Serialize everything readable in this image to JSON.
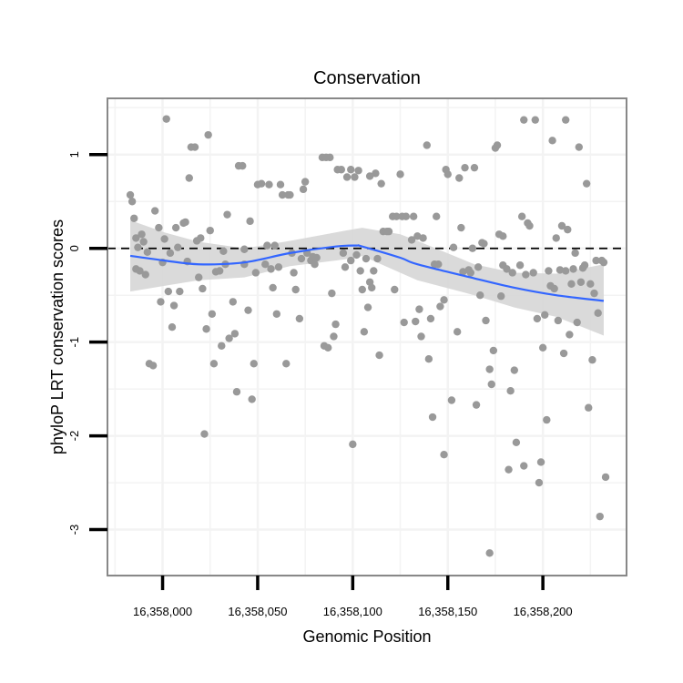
{
  "chart_data": {
    "type": "scatter",
    "title": "Conservation",
    "xlabel": "Genomic Position",
    "ylabel": "phyloP LRT conservation scores",
    "xlim": [
      16357971,
      16358244
    ],
    "ylim": [
      -3.49,
      1.6
    ],
    "grid": true,
    "x_ticks": [
      16358000,
      16358050,
      16358100,
      16358150,
      16358200
    ],
    "x_tick_labels": [
      "16,358,000",
      "16,358,050",
      "16,358,100",
      "16,358,150",
      "16,358,200"
    ],
    "y_ticks": [
      1,
      0,
      -1,
      -2,
      -3
    ],
    "y_tick_labels": [
      "1",
      "0",
      "-1",
      "-2",
      "-3"
    ],
    "reference_line": {
      "y": 0,
      "style": "dashed"
    },
    "colors": {
      "points": "#999999",
      "smooth": "#3366ff",
      "ribbon": "#d6d6d6",
      "border": "#888888"
    },
    "points": [
      [
        16357983,
        0.57
      ],
      [
        16357984,
        0.5
      ],
      [
        16357985,
        0.32
      ],
      [
        16357986,
        0.11
      ],
      [
        16357986,
        -0.22
      ],
      [
        16357987,
        0.01
      ],
      [
        16357988,
        -0.24
      ],
      [
        16357989,
        0.15
      ],
      [
        16357990,
        0.07
      ],
      [
        16357991,
        -0.28
      ],
      [
        16357992,
        -0.04
      ],
      [
        16357993,
        -1.23
      ],
      [
        16357995,
        -1.25
      ],
      [
        16357996,
        0.4
      ],
      [
        16357998,
        0.22
      ],
      [
        16357999,
        -0.57
      ],
      [
        16358000,
        -0.15
      ],
      [
        16358001,
        0.1
      ],
      [
        16358002,
        1.38
      ],
      [
        16358003,
        -0.46
      ],
      [
        16358004,
        -0.05
      ],
      [
        16358005,
        -0.84
      ],
      [
        16358006,
        -0.61
      ],
      [
        16358007,
        0.22
      ],
      [
        16358008,
        0.01
      ],
      [
        16358009,
        -0.46
      ],
      [
        16358011,
        0.27
      ],
      [
        16358012,
        0.28
      ],
      [
        16358013,
        -0.14
      ],
      [
        16358014,
        0.75
      ],
      [
        16358015,
        1.08
      ],
      [
        16358017,
        1.08
      ],
      [
        16358018,
        0.08
      ],
      [
        16358019,
        -0.31
      ],
      [
        16358020,
        0.11
      ],
      [
        16358021,
        -0.43
      ],
      [
        16358022,
        -1.98
      ],
      [
        16358023,
        -0.86
      ],
      [
        16358024,
        1.21
      ],
      [
        16358025,
        0.19
      ],
      [
        16358026,
        -0.7
      ],
      [
        16358027,
        -1.23
      ],
      [
        16358028,
        -0.25
      ],
      [
        16358030,
        -0.24
      ],
      [
        16358031,
        -1.04
      ],
      [
        16358032,
        -0.03
      ],
      [
        16358033,
        -0.17
      ],
      [
        16358034,
        0.36
      ],
      [
        16358035,
        -0.96
      ],
      [
        16358037,
        -0.57
      ],
      [
        16358038,
        -0.91
      ],
      [
        16358039,
        -1.53
      ],
      [
        16358040,
        0.88
      ],
      [
        16358042,
        0.88
      ],
      [
        16358043,
        -0.01
      ],
      [
        16358043,
        -0.17
      ],
      [
        16358045,
        -0.66
      ],
      [
        16358046,
        0.29
      ],
      [
        16358047,
        -1.61
      ],
      [
        16358048,
        -1.23
      ],
      [
        16358049,
        -0.26
      ],
      [
        16358050,
        0.68
      ],
      [
        16358052,
        0.69
      ],
      [
        16358054,
        -0.17
      ],
      [
        16358055,
        0.03
      ],
      [
        16358056,
        0.68
      ],
      [
        16358057,
        -0.22
      ],
      [
        16358058,
        -0.42
      ],
      [
        16358059,
        0.03
      ],
      [
        16358060,
        -0.7
      ],
      [
        16358061,
        -0.2
      ],
      [
        16358062,
        0.68
      ],
      [
        16358063,
        0.57
      ],
      [
        16358065,
        -1.23
      ],
      [
        16358066,
        0.57
      ],
      [
        16358067,
        0.57
      ],
      [
        16358068,
        -0.05
      ],
      [
        16358069,
        -0.26
      ],
      [
        16358070,
        -0.44
      ],
      [
        16358072,
        -0.75
      ],
      [
        16358073,
        -0.11
      ],
      [
        16358074,
        0.63
      ],
      [
        16358075,
        0.71
      ],
      [
        16358076,
        -0.05
      ],
      [
        16358078,
        -0.13
      ],
      [
        16358079,
        -0.09
      ],
      [
        16358080,
        -0.17
      ],
      [
        16358081,
        -0.1
      ],
      [
        16358084,
        0.97
      ],
      [
        16358085,
        -1.04
      ],
      [
        16358086,
        0.97
      ],
      [
        16358087,
        -1.06
      ],
      [
        16358088,
        0.97
      ],
      [
        16358089,
        -0.48
      ],
      [
        16358090,
        -0.94
      ],
      [
        16358091,
        -0.81
      ],
      [
        16358092,
        0.84
      ],
      [
        16358094,
        0.84
      ],
      [
        16358095,
        -0.05
      ],
      [
        16358096,
        -0.2
      ],
      [
        16358097,
        0.76
      ],
      [
        16358099,
        -0.13
      ],
      [
        16358099,
        0.84
      ],
      [
        16358100,
        -2.09
      ],
      [
        16358101,
        0.76
      ],
      [
        16358102,
        -0.07
      ],
      [
        16358103,
        0.83
      ],
      [
        16358104,
        -0.24
      ],
      [
        16358105,
        -0.44
      ],
      [
        16358106,
        -0.89
      ],
      [
        16358107,
        -0.11
      ],
      [
        16358108,
        -0.63
      ],
      [
        16358109,
        -0.36
      ],
      [
        16358109,
        0.77
      ],
      [
        16358110,
        -0.42
      ],
      [
        16358111,
        -0.24
      ],
      [
        16358112,
        0.8
      ],
      [
        16358113,
        -0.11
      ],
      [
        16358114,
        -1.14
      ],
      [
        16358115,
        0.69
      ],
      [
        16358116,
        0.18
      ],
      [
        16358118,
        0.18
      ],
      [
        16358119,
        0.18
      ],
      [
        16358121,
        0.34
      ],
      [
        16358122,
        -0.44
      ],
      [
        16358123,
        0.34
      ],
      [
        16358125,
        0.79
      ],
      [
        16358126,
        0.34
      ],
      [
        16358127,
        -0.79
      ],
      [
        16358128,
        0.34
      ],
      [
        16358131,
        0.09
      ],
      [
        16358132,
        0.34
      ],
      [
        16358133,
        -0.78
      ],
      [
        16358134,
        0.13
      ],
      [
        16358135,
        -0.65
      ],
      [
        16358136,
        -0.94
      ],
      [
        16358137,
        0.11
      ],
      [
        16358139,
        1.1
      ],
      [
        16358140,
        -1.18
      ],
      [
        16358141,
        -0.75
      ],
      [
        16358142,
        -1.8
      ],
      [
        16358143,
        -0.17
      ],
      [
        16358144,
        0.34
      ],
      [
        16358145,
        -0.17
      ],
      [
        16358146,
        -0.62
      ],
      [
        16358148,
        -2.2
      ],
      [
        16358148,
        -0.55
      ],
      [
        16358149,
        0.84
      ],
      [
        16358150,
        0.79
      ],
      [
        16358152,
        -1.62
      ],
      [
        16358153,
        0.01
      ],
      [
        16358155,
        -0.89
      ],
      [
        16358156,
        0.75
      ],
      [
        16358157,
        0.22
      ],
      [
        16358158,
        -0.25
      ],
      [
        16358159,
        0.86
      ],
      [
        16358161,
        -0.23
      ],
      [
        16358162,
        -0.26
      ],
      [
        16358163,
        0.0
      ],
      [
        16358164,
        0.86
      ],
      [
        16358165,
        -1.67
      ],
      [
        16358166,
        -0.2
      ],
      [
        16358167,
        -0.5
      ],
      [
        16358168,
        0.06
      ],
      [
        16358169,
        0.05
      ],
      [
        16358170,
        -0.77
      ],
      [
        16358172,
        -1.29
      ],
      [
        16358172,
        -3.25
      ],
      [
        16358173,
        -1.45
      ],
      [
        16358174,
        -1.09
      ],
      [
        16358175,
        1.07
      ],
      [
        16358176,
        1.1
      ],
      [
        16358177,
        0.15
      ],
      [
        16358178,
        -0.51
      ],
      [
        16358179,
        -0.18
      ],
      [
        16358179,
        0.13
      ],
      [
        16358181,
        -0.22
      ],
      [
        16358182,
        -2.36
      ],
      [
        16358183,
        -1.52
      ],
      [
        16358184,
        -0.26
      ],
      [
        16358185,
        -1.3
      ],
      [
        16358186,
        -2.07
      ],
      [
        16358188,
        -0.18
      ],
      [
        16358189,
        0.34
      ],
      [
        16358190,
        1.37
      ],
      [
        16358190,
        -2.32
      ],
      [
        16358191,
        -0.28
      ],
      [
        16358192,
        0.27
      ],
      [
        16358193,
        0.24
      ],
      [
        16358195,
        -0.26
      ],
      [
        16358196,
        1.37
      ],
      [
        16358197,
        -0.75
      ],
      [
        16358198,
        -2.5
      ],
      [
        16358199,
        -2.28
      ],
      [
        16358200,
        -1.06
      ],
      [
        16358201,
        -0.71
      ],
      [
        16358202,
        -1.83
      ],
      [
        16358203,
        -0.24
      ],
      [
        16358204,
        -0.4
      ],
      [
        16358205,
        1.15
      ],
      [
        16358206,
        -0.43
      ],
      [
        16358207,
        0.11
      ],
      [
        16358208,
        -0.77
      ],
      [
        16358209,
        -0.23
      ],
      [
        16358210,
        0.24
      ],
      [
        16358211,
        -1.12
      ],
      [
        16358212,
        -0.24
      ],
      [
        16358212,
        1.37
      ],
      [
        16358213,
        0.2
      ],
      [
        16358214,
        -0.92
      ],
      [
        16358215,
        -0.38
      ],
      [
        16358216,
        -0.22
      ],
      [
        16358217,
        -0.05
      ],
      [
        16358218,
        -0.79
      ],
      [
        16358219,
        1.08
      ],
      [
        16358220,
        -0.36
      ],
      [
        16358221,
        -0.21
      ],
      [
        16358222,
        -0.18
      ],
      [
        16358223,
        0.69
      ],
      [
        16358224,
        -1.7
      ],
      [
        16358225,
        -0.38
      ],
      [
        16358226,
        -1.19
      ],
      [
        16358227,
        -0.48
      ],
      [
        16358228,
        -0.13
      ],
      [
        16358229,
        -0.69
      ],
      [
        16358230,
        -2.86
      ],
      [
        16358231,
        -0.13
      ],
      [
        16358232,
        -0.15
      ],
      [
        16358233,
        -2.44
      ]
    ],
    "smooth": {
      "x": [
        16357983,
        16358001,
        16358019,
        16358043,
        16358067,
        16358091,
        16358102,
        16358105,
        16358125,
        16358134,
        16358164,
        16358185,
        16358207,
        16358232
      ],
      "y": [
        -0.08,
        -0.13,
        -0.17,
        -0.15,
        -0.05,
        0.02,
        0.03,
        0.02,
        -0.1,
        -0.17,
        -0.32,
        -0.42,
        -0.5,
        -0.56
      ],
      "upper": [
        0.3,
        0.17,
        0.07,
        0.0,
        0.08,
        0.17,
        0.21,
        0.22,
        0.15,
        0.08,
        -0.17,
        -0.26,
        -0.27,
        -0.17
      ],
      "lower": [
        -0.46,
        -0.4,
        -0.34,
        -0.31,
        -0.19,
        -0.13,
        -0.1,
        -0.08,
        -0.26,
        -0.34,
        -0.5,
        -0.63,
        -0.73,
        -0.93
      ]
    }
  }
}
